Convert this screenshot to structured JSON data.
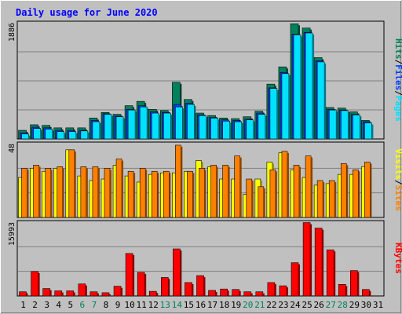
{
  "title": "Daily usage for June 2020",
  "colors": {
    "background": "#C0C0C0",
    "title": "#0000FF",
    "hits": "#00805C",
    "files": "#0040FF",
    "pages": "#00E0FF",
    "visits": "#FFFF00",
    "sites": "#FF8000",
    "kbytes": "#FF0000",
    "weekend_day": "#00805C",
    "weekday": "#000000"
  },
  "chart_data": [
    {
      "type": "bar",
      "title": "Daily usage for June 2020",
      "categories": [
        "1",
        "2",
        "3",
        "4",
        "5",
        "6",
        "7",
        "8",
        "9",
        "10",
        "11",
        "12",
        "13",
        "14",
        "15",
        "16",
        "17",
        "18",
        "19",
        "20",
        "21",
        "22",
        "23",
        "24",
        "25",
        "26",
        "27",
        "28",
        "29",
        "30",
        "31"
      ],
      "weekend_days": [
        "6",
        "7",
        "13",
        "14",
        "20",
        "21",
        "27",
        "28"
      ],
      "ymax_label": "1886",
      "ylim": [
        0,
        1886
      ],
      "legend": [
        "Pages",
        "Files",
        "Hits"
      ],
      "legend_position": "right",
      "series": [
        {
          "name": "Hits",
          "values": [
            140,
            230,
            220,
            180,
            180,
            180,
            340,
            430,
            400,
            540,
            610,
            480,
            460,
            920,
            640,
            420,
            380,
            340,
            330,
            360,
            450,
            890,
            1170,
            1870,
            1800,
            1320,
            510,
            500,
            440,
            300,
            0
          ]
        },
        {
          "name": "Files",
          "values": [
            100,
            190,
            180,
            140,
            140,
            140,
            300,
            410,
            370,
            480,
            540,
            440,
            430,
            560,
            580,
            390,
            350,
            310,
            300,
            320,
            420,
            830,
            1080,
            1700,
            1730,
            1270,
            480,
            470,
            400,
            280,
            0
          ]
        },
        {
          "name": "Pages",
          "values": [
            80,
            170,
            160,
            120,
            120,
            130,
            280,
            400,
            360,
            470,
            520,
            420,
            420,
            520,
            560,
            380,
            340,
            290,
            280,
            310,
            400,
            820,
            1060,
            1690,
            1720,
            1250,
            470,
            460,
            390,
            260,
            0
          ]
        }
      ]
    },
    {
      "type": "bar",
      "categories": [
        "1",
        "2",
        "3",
        "4",
        "5",
        "6",
        "7",
        "8",
        "9",
        "10",
        "11",
        "12",
        "13",
        "14",
        "15",
        "16",
        "17",
        "18",
        "19",
        "20",
        "21",
        "22",
        "23",
        "24",
        "25",
        "26",
        "27",
        "28",
        "29",
        "30",
        "31"
      ],
      "ymax_label": "48",
      "ylim": [
        0,
        48
      ],
      "legend": [
        "Sites",
        "Visits"
      ],
      "legend_position": "right",
      "series": [
        {
          "name": "Visits",
          "values": [
            26,
            32,
            30,
            32,
            44,
            27,
            24,
            25,
            34,
            27,
            23,
            28,
            29,
            29,
            30,
            37,
            33,
            25,
            25,
            15,
            25,
            36,
            42,
            31,
            26,
            21,
            22,
            28,
            28,
            33,
            0
          ]
        },
        {
          "name": "Sites",
          "values": [
            32,
            34,
            32,
            33,
            44,
            33,
            33,
            32,
            38,
            30,
            32,
            30,
            30,
            47,
            30,
            32,
            34,
            34,
            40,
            25,
            20,
            31,
            43,
            34,
            40,
            24,
            24,
            35,
            31,
            36,
            0
          ]
        }
      ]
    },
    {
      "type": "bar",
      "categories": [
        "1",
        "2",
        "3",
        "4",
        "5",
        "6",
        "7",
        "8",
        "9",
        "10",
        "11",
        "12",
        "13",
        "14",
        "15",
        "16",
        "17",
        "18",
        "19",
        "20",
        "21",
        "22",
        "23",
        "24",
        "25",
        "26",
        "27",
        "28",
        "29",
        "30",
        "31"
      ],
      "ymax_label": "15993",
      "ylim": [
        0,
        15993
      ],
      "legend": [
        "KBytes"
      ],
      "legend_position": "right",
      "series": [
        {
          "name": "KBytes",
          "values": [
            900,
            5300,
            1600,
            1100,
            1100,
            2600,
            900,
            700,
            2100,
            9200,
            5100,
            1000,
            4000,
            10200,
            2900,
            4400,
            1200,
            1500,
            1400,
            900,
            900,
            2900,
            2200,
            7200,
            15900,
            14700,
            10000,
            2500,
            5500,
            1400,
            0
          ]
        }
      ]
    }
  ]
}
